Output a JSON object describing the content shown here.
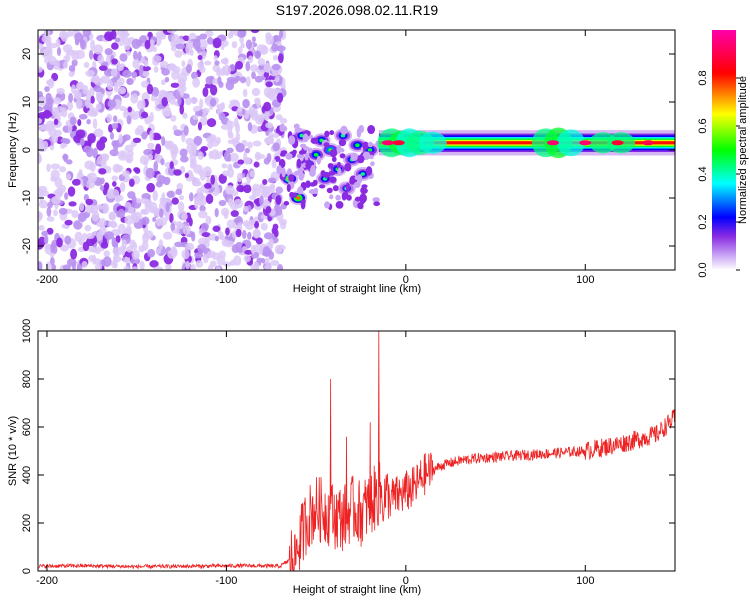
{
  "title": "S197.2026.098.02.11.R19",
  "chart_data": [
    {
      "type": "heatmap",
      "xlabel": "Height of straight line (km)",
      "ylabel": "Frequency (Hz)",
      "xlim": [
        -205,
        150
      ],
      "ylim": [
        -25,
        25
      ],
      "xticks": [
        -200,
        -100,
        0,
        100
      ],
      "yticks": [
        -20,
        -10,
        0,
        10,
        20
      ],
      "colorbar": {
        "label": "Normalized spectral amplitude",
        "range": [
          0,
          1
        ],
        "ticks": [
          0.0,
          0.2,
          0.4,
          0.6,
          0.8
        ],
        "tick_labels": [
          "0.0",
          "0.2",
          "0.4",
          "0.6",
          "0.8"
        ],
        "colors": [
          "#ffffff",
          "#8a2be2",
          "#0000ff",
          "#00ffff",
          "#00ff00",
          "#ffff00",
          "#ff0000",
          "#ff00aa"
        ]
      },
      "regions": [
        {
          "description": "diffuse purple noise",
          "x_range": [
            -205,
            -72
          ],
          "y_range": [
            -25,
            25
          ],
          "amplitude": 0.1
        },
        {
          "description": "scattered blobs",
          "x_range": [
            -72,
            -15
          ],
          "y_range": [
            -12,
            5
          ],
          "amplitude": 0.3
        },
        {
          "description": "strong narrow band",
          "x_range": [
            -15,
            150
          ],
          "y_center": 1.5,
          "y_halfwidth": 1.2,
          "amplitude": 0.95
        }
      ]
    },
    {
      "type": "line",
      "xlabel": "Height of straight line (km)",
      "ylabel": "SNR (10 * v/v)",
      "xlim": [
        -205,
        150
      ],
      "ylim": [
        0,
        1000
      ],
      "xticks": [
        -200,
        -100,
        0,
        100
      ],
      "yticks": [
        0,
        200,
        400,
        600,
        800,
        1000
      ],
      "line_color": "#ee2222",
      "series": [
        {
          "name": "SNR",
          "x": [
            -205,
            -180,
            -150,
            -120,
            -90,
            -70,
            -62,
            -58,
            -55,
            -50,
            -45,
            -40,
            -35,
            -30,
            -25,
            -20,
            -15,
            -10,
            -5,
            0,
            5,
            10,
            20,
            30,
            40,
            60,
            80,
            100,
            120,
            140,
            150
          ],
          "y": [
            20,
            22,
            18,
            20,
            22,
            20,
            60,
            150,
            220,
            260,
            250,
            230,
            220,
            260,
            240,
            280,
            320,
            300,
            310,
            330,
            350,
            400,
            440,
            460,
            470,
            480,
            490,
            500,
            530,
            570,
            640
          ]
        }
      ],
      "spikes": [
        {
          "x": -42,
          "y": 800
        },
        {
          "x": -15,
          "y": 1000
        },
        {
          "x": -33,
          "y": 560
        },
        {
          "x": -20,
          "y": 620
        }
      ]
    }
  ]
}
